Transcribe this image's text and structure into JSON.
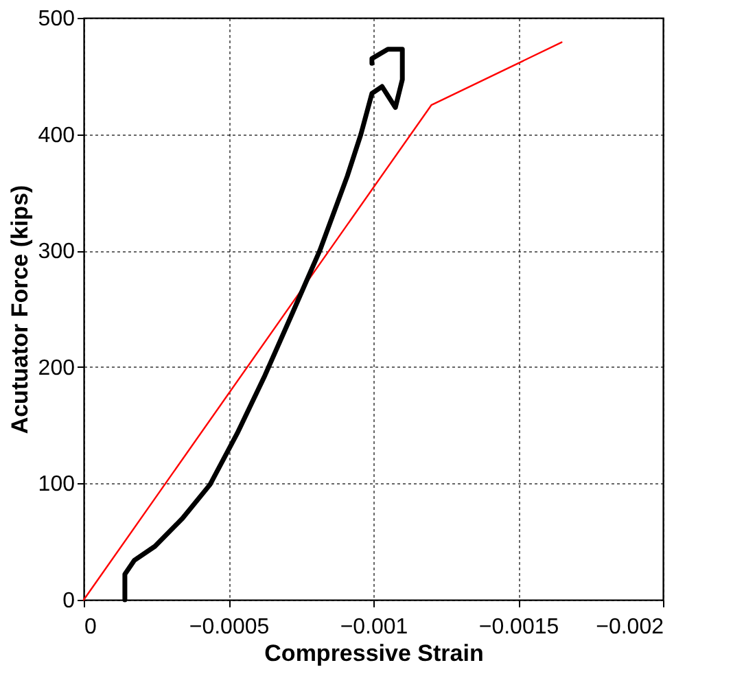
{
  "chart_data": {
    "type": "line",
    "xlabel": "Compressive Strain",
    "ylabel": "Acutuator Force (kips)",
    "xlim": [
      0,
      -0.002
    ],
    "xticks": [
      0,
      -0.0005,
      -0.001,
      -0.0015,
      -0.002
    ],
    "ylim": [
      0,
      500
    ],
    "yticks": [
      0,
      100,
      200,
      300,
      400,
      500
    ],
    "grid": true,
    "series": [
      {
        "color": "#ff0000",
        "x": [
          0,
          -0.0012,
          -0.00165
        ],
        "values": [
          0,
          425,
          479
        ]
      },
      {
        "color": "#000000",
        "x": [
          -0.000142,
          -0.000142,
          -0.000175,
          -0.000246,
          -0.000341,
          -0.000436,
          -0.00053,
          -0.000626,
          -0.00072,
          -0.000815,
          -0.00091,
          -0.000957,
          -0.000995,
          -0.00103,
          -0.001076,
          -0.0011,
          -0.0011,
          -0.00105,
          -0.000995,
          -0.000995
        ],
        "values": [
          0,
          22,
          34,
          46,
          70,
          99,
          143,
          193,
          246,
          300,
          364,
          400,
          435,
          441,
          423,
          447,
          473,
          473,
          465,
          461
        ]
      }
    ]
  }
}
